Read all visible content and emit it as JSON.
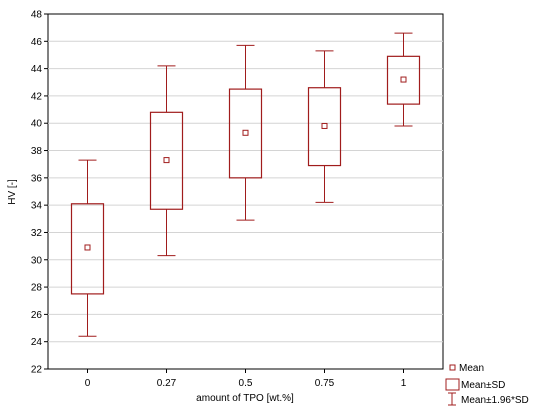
{
  "chart_data": {
    "type": "box",
    "xlabel": "amount of TPO [wt.%]",
    "ylabel": "HV [-]",
    "ylim": [
      22,
      48
    ],
    "yticks": [
      22,
      24,
      26,
      28,
      30,
      32,
      34,
      36,
      38,
      40,
      42,
      44,
      46,
      48
    ],
    "categories": [
      "0",
      "0.27",
      "0.5",
      "0.75",
      "1"
    ],
    "mean": [
      30.9,
      37.3,
      39.3,
      39.8,
      43.2
    ],
    "sd_lower": [
      27.5,
      33.7,
      36.0,
      36.9,
      41.4
    ],
    "sd_upper": [
      34.1,
      40.8,
      42.5,
      42.6,
      44.9
    ],
    "whisker_lower": [
      24.4,
      30.3,
      32.9,
      34.2,
      39.8
    ],
    "whisker_upper": [
      37.3,
      44.2,
      45.7,
      45.3,
      46.6
    ],
    "grid": true,
    "legend_position": "bottom-right",
    "legend": [
      "Mean",
      "Mean±SD",
      "Mean±1.96*SD"
    ],
    "color": "#a01c1c"
  }
}
